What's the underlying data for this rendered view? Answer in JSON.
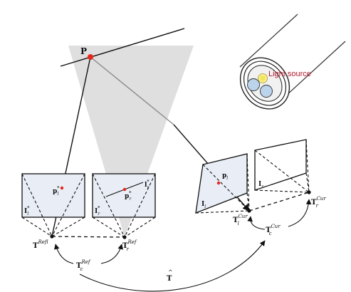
{
  "labels": {
    "point_P": "P",
    "light_source": "Light source",
    "p_l_star": "p",
    "p_l_star_sup": "*",
    "p_l_star_sub": "l",
    "I_l_star": "I",
    "I_l_star_sup": "*",
    "I_l_star_sub": "l",
    "p_r_star": "p",
    "p_r_star_sup": "*",
    "p_r_star_sub": "r",
    "l_r_star": "l",
    "l_r_star_sup": "*",
    "l_r_star_sub": "r",
    "I_r_star": "I",
    "I_r_star_sup": "*",
    "I_r_star_sub": "r",
    "T_l_ref": "T",
    "T_l_ref_sup": "Ref",
    "T_l_ref_sub": "l",
    "T_r_ref": "T",
    "T_r_ref_sup": "Ref",
    "T_r_ref_sub": "r",
    "T_c_ref": "T",
    "T_c_ref_sup": "Ref",
    "T_c_ref_sub": "c",
    "p_l": "p",
    "p_l_sub": "l",
    "I_l": "I",
    "I_l_sub": "l",
    "I_r": "I",
    "I_r_sub": "r",
    "T_l_cur": "T",
    "T_l_cur_sup": "Cur",
    "T_l_cur_sub": "l",
    "T_r_cur": "T",
    "T_r_cur_sup": "Cur",
    "T_r_cur_sub": "r",
    "T_c_cur": "T",
    "T_c_cur_sup": "Cur",
    "T_c_cur_sub": "c",
    "T_hat": "T",
    "T_hat_accent": "^"
  },
  "colors": {
    "point_red": "#e8271c",
    "light_source_text": "#b0192b",
    "light_glow": "#f3e35a",
    "lens_blue": "#bcd3ec",
    "image_plane_fill": "#e9eef6",
    "projection_cone": "#d6d6d6",
    "ray_gray": "#8a8a8a"
  }
}
